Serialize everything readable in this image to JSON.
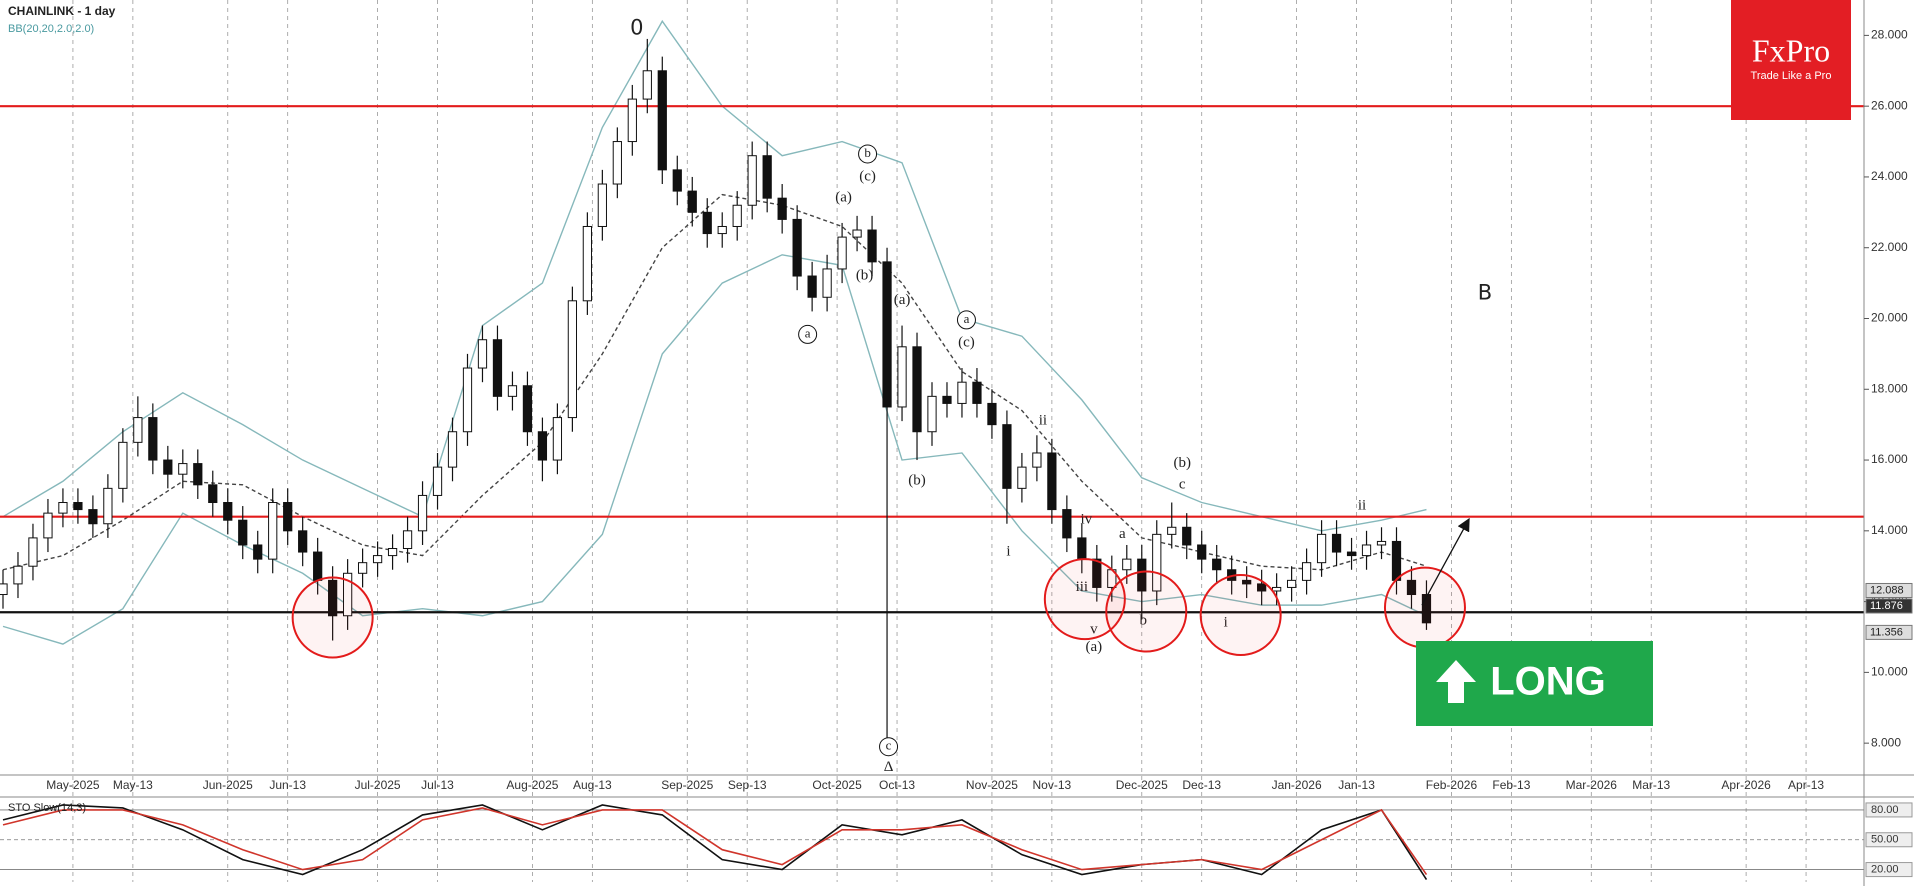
{
  "chart_data": [
    {
      "type": "candlestick",
      "title": "CHAINLINK - 1 day",
      "subtitle": "BB(20,20,2.0,2.0)",
      "open": [
        12.2,
        12.5,
        13.0,
        13.8,
        14.5,
        14.8,
        14.6,
        14.2,
        15.2,
        16.5,
        17.2,
        16.0,
        15.6,
        15.9,
        15.3,
        14.8,
        14.3,
        13.6,
        13.2,
        14.8,
        14.0,
        13.4,
        12.6,
        11.6,
        12.8,
        13.1,
        13.3,
        13.5,
        14.0,
        15.0,
        15.8,
        16.8,
        18.6,
        19.4,
        17.8,
        18.1,
        16.8,
        16.0,
        17.2,
        20.5,
        22.6,
        23.8,
        25.0,
        26.2,
        27.0,
        24.2,
        23.6,
        23.0,
        22.4,
        22.6,
        23.2,
        24.6,
        23.4,
        22.8,
        21.2,
        20.6,
        21.4,
        22.3,
        22.5,
        21.6,
        17.5,
        19.2,
        16.8,
        17.8,
        17.6,
        18.2,
        17.6,
        17.0,
        15.2,
        15.8,
        16.2,
        14.6,
        13.8,
        13.2,
        12.4,
        12.9,
        13.2,
        12.3,
        13.9,
        14.1,
        13.6,
        13.2,
        12.9,
        12.6,
        12.5,
        12.3,
        12.4,
        12.6,
        13.1,
        13.9,
        13.4,
        13.3,
        13.6,
        13.7,
        12.6,
        12.2
      ],
      "high": [
        12.9,
        13.4,
        14.2,
        14.9,
        15.2,
        15.2,
        15.0,
        15.6,
        16.9,
        17.8,
        17.6,
        16.4,
        16.3,
        16.3,
        15.7,
        15.2,
        14.7,
        14.0,
        15.2,
        15.2,
        14.4,
        13.8,
        13.0,
        13.2,
        13.5,
        13.7,
        13.9,
        14.4,
        15.4,
        16.2,
        17.2,
        19.0,
        19.8,
        19.8,
        18.5,
        18.5,
        17.2,
        17.6,
        20.9,
        23.0,
        24.2,
        25.4,
        26.6,
        27.9,
        27.4,
        24.6,
        24.0,
        23.4,
        23.0,
        23.6,
        25.0,
        25.0,
        23.8,
        23.2,
        21.6,
        21.8,
        22.7,
        22.9,
        22.9,
        22.0,
        19.8,
        19.6,
        18.2,
        18.2,
        18.6,
        18.6,
        18.0,
        17.4,
        16.2,
        16.7,
        16.6,
        15.0,
        14.2,
        13.6,
        13.3,
        13.6,
        13.6,
        14.3,
        14.8,
        14.5,
        14.0,
        13.6,
        13.3,
        13.0,
        12.9,
        12.8,
        13.0,
        13.5,
        14.3,
        14.3,
        13.8,
        14.0,
        14.1,
        14.1,
        13.0,
        12.6
      ],
      "low": [
        11.8,
        12.1,
        12.6,
        13.4,
        14.1,
        14.2,
        13.8,
        13.8,
        14.8,
        16.1,
        15.6,
        15.2,
        15.2,
        14.9,
        14.4,
        13.9,
        13.2,
        12.8,
        12.8,
        13.6,
        13.0,
        12.2,
        10.9,
        11.2,
        12.4,
        12.7,
        12.9,
        13.1,
        13.6,
        14.6,
        15.4,
        16.4,
        18.2,
        17.4,
        17.4,
        16.4,
        15.4,
        15.6,
        16.8,
        20.1,
        22.2,
        23.4,
        24.6,
        25.8,
        23.8,
        23.2,
        22.6,
        22.0,
        22.0,
        22.2,
        22.8,
        23.0,
        22.4,
        20.8,
        20.2,
        20.2,
        21.0,
        21.9,
        21.2,
        7.9,
        17.1,
        16.0,
        16.4,
        17.2,
        17.2,
        17.2,
        16.6,
        14.2,
        14.8,
        15.4,
        14.2,
        13.4,
        12.8,
        12.0,
        12.0,
        12.5,
        11.5,
        11.9,
        13.5,
        13.2,
        12.8,
        12.5,
        12.2,
        12.1,
        11.9,
        11.9,
        12.0,
        12.2,
        12.7,
        13.0,
        12.9,
        12.9,
        13.2,
        12.2,
        11.8,
        11.2
      ],
      "close": [
        12.5,
        13.0,
        13.8,
        14.5,
        14.8,
        14.6,
        14.2,
        15.2,
        16.5,
        17.2,
        16.0,
        15.6,
        15.9,
        15.3,
        14.8,
        14.3,
        13.6,
        13.2,
        14.8,
        14.0,
        13.4,
        12.6,
        11.6,
        12.8,
        13.1,
        13.3,
        13.5,
        14.0,
        15.0,
        15.8,
        16.8,
        18.6,
        19.4,
        17.8,
        18.1,
        16.8,
        16.0,
        17.2,
        20.5,
        22.6,
        23.8,
        25.0,
        26.2,
        27.0,
        24.2,
        23.6,
        23.0,
        22.4,
        22.6,
        23.2,
        24.6,
        23.4,
        22.8,
        21.2,
        20.6,
        21.4,
        22.3,
        22.5,
        21.6,
        17.5,
        19.2,
        16.8,
        17.8,
        17.6,
        18.2,
        17.6,
        17.0,
        15.2,
        15.8,
        16.2,
        14.6,
        13.8,
        13.2,
        12.4,
        12.9,
        13.2,
        12.3,
        13.9,
        14.1,
        13.6,
        13.2,
        12.9,
        12.6,
        12.5,
        12.3,
        12.4,
        12.6,
        13.1,
        13.9,
        13.4,
        13.3,
        13.6,
        13.7,
        12.6,
        12.2,
        11.4
      ],
      "up_color": "#ffffff",
      "down_color": "#111111",
      "overlays": [
        {
          "color": "#86b8bb",
          "dashed": false,
          "x": [
            0,
            4,
            8,
            12,
            16,
            20,
            24,
            28,
            32,
            36,
            40,
            44,
            48,
            52,
            56,
            60,
            64,
            68,
            72,
            76,
            80,
            84,
            88,
            92,
            95
          ],
          "values": [
            14.4,
            15.4,
            16.8,
            17.9,
            17.0,
            16.0,
            15.2,
            14.4,
            19.8,
            21.0,
            25.4,
            28.4,
            26.0,
            24.6,
            25.0,
            24.4,
            20.0,
            19.5,
            17.7,
            15.5,
            14.8,
            14.4,
            14.0,
            14.3,
            14.6
          ]
        },
        {
          "color": "#444444",
          "dashed": true,
          "x": [
            0,
            4,
            8,
            12,
            16,
            20,
            24,
            28,
            32,
            36,
            40,
            44,
            48,
            52,
            56,
            60,
            64,
            68,
            72,
            76,
            80,
            84,
            88,
            92,
            95
          ],
          "values": [
            12.9,
            13.3,
            14.3,
            15.4,
            15.3,
            14.4,
            13.6,
            13.3,
            15.0,
            16.5,
            19.0,
            22.0,
            23.5,
            23.2,
            22.6,
            21.0,
            18.5,
            17.4,
            15.4,
            13.8,
            13.4,
            13.0,
            12.9,
            13.4,
            13.0
          ]
        },
        {
          "color": "#86b8bb",
          "dashed": false,
          "x": [
            0,
            4,
            8,
            12,
            16,
            20,
            24,
            28,
            32,
            36,
            40,
            44,
            48,
            52,
            56,
            60,
            64,
            68,
            72,
            76,
            80,
            84,
            88,
            92,
            95
          ],
          "values": [
            11.3,
            10.8,
            11.8,
            14.5,
            13.6,
            12.8,
            11.6,
            11.8,
            11.6,
            12.0,
            13.9,
            19.0,
            21.0,
            21.8,
            21.5,
            16.0,
            16.2,
            14.0,
            12.3,
            12.0,
            12.2,
            11.9,
            11.9,
            12.2,
            11.6
          ]
        }
      ],
      "levels": [
        {
          "value": 26.0,
          "color": "#e31b1b"
        },
        {
          "value": 14.4,
          "color": "#e31b1b"
        },
        {
          "value": 11.7,
          "color": "#111111"
        }
      ],
      "price_markers": [
        12.088,
        11.876,
        11.356
      ],
      "xlim": [
        -0.2,
        124.2
      ],
      "xticks": [
        {
          "value": 4.667,
          "label": "May-2025"
        },
        {
          "value": 8.667,
          "label": "May-13"
        },
        {
          "value": 15,
          "label": "Jun-2025"
        },
        {
          "value": 19,
          "label": "Jun-13"
        },
        {
          "value": 25,
          "label": "Jul-2025"
        },
        {
          "value": 29,
          "label": "Jul-13"
        },
        {
          "value": 35.333,
          "label": "Aug-2025"
        },
        {
          "value": 39.333,
          "label": "Aug-13"
        },
        {
          "value": 45.667,
          "label": "Sep-2025"
        },
        {
          "value": 49.667,
          "label": "Sep-13"
        },
        {
          "value": 55.667,
          "label": "Oct-2025"
        },
        {
          "value": 59.667,
          "label": "Oct-13"
        },
        {
          "value": 66,
          "label": "Nov-2025"
        },
        {
          "value": 70,
          "label": "Nov-13"
        },
        {
          "value": 76,
          "label": "Dec-2025"
        },
        {
          "value": 80,
          "label": "Dec-13"
        },
        {
          "value": 86.333,
          "label": "Jan-2026"
        },
        {
          "value": 90.333,
          "label": "Jan-13"
        },
        {
          "value": 96.667,
          "label": "Feb-2026"
        },
        {
          "value": 100.667,
          "label": "Feb-13"
        },
        {
          "value": 106,
          "label": "Mar-2026"
        },
        {
          "value": 110,
          "label": "Mar-13"
        },
        {
          "value": 116.333,
          "label": "Apr-2026"
        },
        {
          "value": 120.333,
          "label": "Apr-13"
        }
      ],
      "ylim": [
        7.1,
        29.0
      ],
      "yticks": [
        {
          "value": 8,
          "label": "8.000"
        },
        {
          "value": 10,
          "label": "10.000"
        },
        {
          "value": 12,
          "label": "12.000"
        },
        {
          "value": 14,
          "label": "14.000"
        },
        {
          "value": 16,
          "label": "16.000"
        },
        {
          "value": 18,
          "label": "18.000"
        },
        {
          "value": 20,
          "label": "20.000"
        },
        {
          "value": 22,
          "label": "22.000"
        },
        {
          "value": 24,
          "label": "24.000"
        },
        {
          "value": 26,
          "label": "26.000"
        },
        {
          "value": 28,
          "label": "28.000"
        }
      ],
      "grid": true,
      "annotations": [
        {
          "text": "0",
          "x": 42.3,
          "y": 28.2,
          "large": true
        },
        {
          "text": "b",
          "x": 57.7,
          "y": 24.65,
          "circled": true
        },
        {
          "text": "(c)",
          "x": 57.7,
          "y": 24.0
        },
        {
          "text": "(a)",
          "x": 56.1,
          "y": 23.4
        },
        {
          "text": "(b)",
          "x": 57.5,
          "y": 21.2
        },
        {
          "text": "a",
          "x": 53.7,
          "y": 19.55,
          "circled": true
        },
        {
          "text": "(a)",
          "x": 60.0,
          "y": 20.5
        },
        {
          "text": "c",
          "x": 59.1,
          "y": 7.9,
          "circled": true
        },
        {
          "text": "Δ",
          "x": 59.1,
          "y": 7.31
        },
        {
          "text": "a",
          "x": 64.3,
          "y": 19.96,
          "circled": true
        },
        {
          "text": "(c)",
          "x": 64.3,
          "y": 19.3
        },
        {
          "text": "(b)",
          "x": 61.0,
          "y": 15.4
        },
        {
          "text": "ii",
          "x": 69.4,
          "y": 17.1
        },
        {
          "text": "i",
          "x": 67.1,
          "y": 13.4
        },
        {
          "text": "iv",
          "x": 72.3,
          "y": 14.3
        },
        {
          "text": "iii",
          "x": 72.0,
          "y": 12.4
        },
        {
          "text": "v",
          "x": 72.8,
          "y": 11.2
        },
        {
          "text": "(a)",
          "x": 72.8,
          "y": 10.7
        },
        {
          "text": "a",
          "x": 74.7,
          "y": 13.9
        },
        {
          "text": "b",
          "x": 76.1,
          "y": 11.45
        },
        {
          "text": "(b)",
          "x": 78.7,
          "y": 15.9
        },
        {
          "text": "c",
          "x": 78.7,
          "y": 15.3
        },
        {
          "text": "i",
          "x": 81.6,
          "y": 11.4
        },
        {
          "text": "ii",
          "x": 90.7,
          "y": 14.7
        },
        {
          "text": "B",
          "x": 98.9,
          "y": 20.7,
          "large": true
        }
      ],
      "highlights": [
        {
          "x": 22.0,
          "y": 11.55
        },
        {
          "x": 72.2,
          "y": 12.07
        },
        {
          "x": 76.3,
          "y": 11.72
        },
        {
          "x": 82.6,
          "y": 11.62
        },
        {
          "x": 94.9,
          "y": 11.83
        }
      ],
      "projection": {
        "x": [
          94.7,
          97.8
        ],
        "y": [
          11.9,
          14.3
        ]
      },
      "signal": "LONG"
    },
    {
      "type": "line",
      "title": "STO Slow(14,3)",
      "series": [
        {
          "color": "#111111",
          "x": [
            0,
            4,
            8,
            12,
            16,
            20,
            24,
            28,
            32,
            36,
            40,
            44,
            48,
            52,
            56,
            60,
            64,
            68,
            72,
            76,
            80,
            84,
            88,
            92,
            95
          ],
          "values": [
            70,
            85,
            82,
            60,
            30,
            15,
            40,
            75,
            85,
            60,
            85,
            75,
            30,
            20,
            65,
            55,
            70,
            35,
            15,
            25,
            30,
            15,
            60,
            80,
            10
          ]
        },
        {
          "color": "#d0352b",
          "x": [
            0,
            4,
            8,
            12,
            16,
            20,
            24,
            28,
            32,
            36,
            40,
            44,
            48,
            52,
            56,
            60,
            64,
            68,
            72,
            76,
            80,
            84,
            88,
            92,
            95
          ],
          "values": [
            65,
            80,
            80,
            65,
            40,
            20,
            30,
            70,
            82,
            65,
            80,
            80,
            40,
            25,
            60,
            60,
            65,
            40,
            20,
            25,
            30,
            20,
            50,
            80,
            15
          ]
        }
      ],
      "ylim": [
        7.5,
        90
      ],
      "yticks": [
        {
          "value": 20,
          "label": "20.00"
        },
        {
          "value": 50,
          "label": "50.00"
        },
        {
          "value": 80,
          "label": "80.00"
        }
      ]
    }
  ],
  "logo": {
    "name": "FxPro",
    "tagline": "Trade Like a Pro"
  }
}
